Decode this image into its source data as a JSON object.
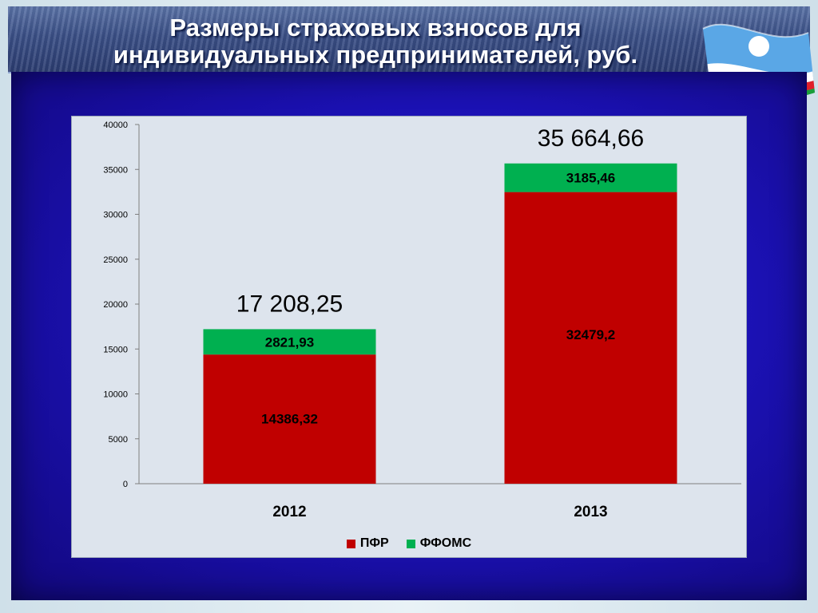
{
  "slide": {
    "title_line1": "Размеры страховых взносов для",
    "title_line2": "индивидуальных предпринимателей, руб.",
    "flag_icon": "yakutia-flag-icon"
  },
  "colors": {
    "pfr": "#c00000",
    "ffoms": "#00b050",
    "panel": "#dde4ed"
  },
  "chart_data": {
    "type": "bar",
    "stacked": true,
    "categories": [
      "2012",
      "2013"
    ],
    "series": [
      {
        "name": "ПФР",
        "values": [
          14386.32,
          32479.2
        ],
        "labels": [
          "14386,32",
          "32479,2"
        ],
        "color": "#c00000"
      },
      {
        "name": "ФФОМС",
        "values": [
          2821.93,
          3185.46
        ],
        "labels": [
          "2821,93",
          "3185,46"
        ],
        "color": "#00b050"
      }
    ],
    "totals": [
      "17 208,25",
      "35 664,66"
    ],
    "ylim": [
      0,
      40000
    ],
    "yticks": [
      0,
      5000,
      10000,
      15000,
      20000,
      25000,
      30000,
      35000,
      40000
    ],
    "grid": false,
    "legend": "bottom"
  }
}
